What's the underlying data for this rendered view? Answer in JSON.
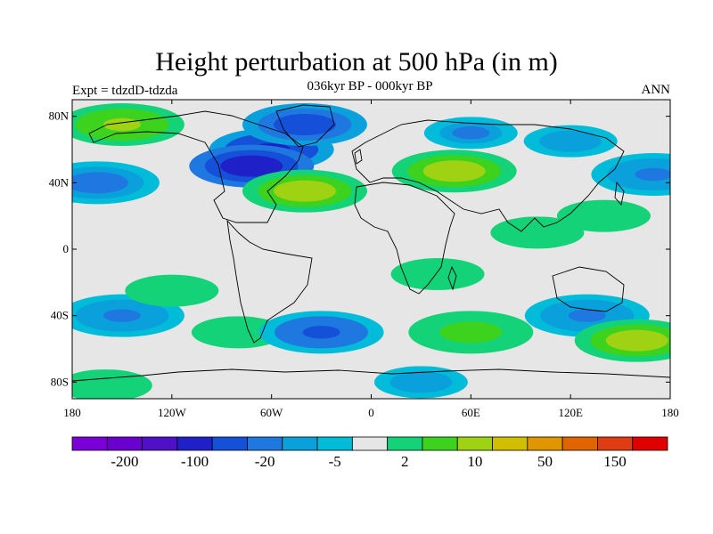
{
  "title": "Height perturbation at 500 hPa (in m)",
  "subtitle": "036kyr BP - 000kyr BP",
  "experiment": "Expt = tdzdD-tdzda",
  "season": "ANN",
  "map": {
    "projection": "equirectangular",
    "lon_range": [
      -180,
      180
    ],
    "lat_range": [
      -90,
      90
    ],
    "lat_ticks": [
      {
        "value": 80,
        "label": "80N"
      },
      {
        "value": 40,
        "label": "40N"
      },
      {
        "value": 0,
        "label": "0"
      },
      {
        "value": -40,
        "label": "40S"
      },
      {
        "value": -80,
        "label": "80S"
      }
    ],
    "lon_ticks": [
      {
        "value": -180,
        "label": "180"
      },
      {
        "value": -120,
        "label": "120W"
      },
      {
        "value": -60,
        "label": "60W"
      },
      {
        "value": 0,
        "label": "0"
      },
      {
        "value": 60,
        "label": "60E"
      },
      {
        "value": 120,
        "label": "120E"
      },
      {
        "value": 180,
        "label": "180"
      }
    ],
    "background_color": "#e6e6e6"
  },
  "colorbar": {
    "colors": [
      "#7b00d8",
      "#6a00d0",
      "#5010c8",
      "#2020c8",
      "#1450d8",
      "#1e78e0",
      "#0aa0dc",
      "#00bcd8",
      "#e6e6e6",
      "#14d278",
      "#3cd21e",
      "#a0d214",
      "#d2be00",
      "#e09600",
      "#e06400",
      "#e03c14",
      "#e00000"
    ],
    "labels": [
      {
        "after_box": 1,
        "text": "-200"
      },
      {
        "after_box": 3,
        "text": "-100"
      },
      {
        "after_box": 5,
        "text": "-20"
      },
      {
        "after_box": 7,
        "text": "-5"
      },
      {
        "after_box": 9,
        "text": "2"
      },
      {
        "after_box": 11,
        "text": "10"
      },
      {
        "after_box": 13,
        "text": "50"
      },
      {
        "after_box": 15,
        "text": "150"
      }
    ]
  },
  "field_anomalies": [
    {
      "lon": -60,
      "lat": 60,
      "value": -60
    },
    {
      "lon": -72,
      "lat": 50,
      "value": -110
    },
    {
      "lon": -40,
      "lat": 75,
      "value": -40
    },
    {
      "lon": -165,
      "lat": 40,
      "value": -20
    },
    {
      "lon": -150,
      "lat": 75,
      "value": 30
    },
    {
      "lon": -40,
      "lat": 35,
      "value": 40
    },
    {
      "lon": 50,
      "lat": 47,
      "value": 40
    },
    {
      "lon": 60,
      "lat": 70,
      "value": -12
    },
    {
      "lon": 120,
      "lat": 65,
      "value": -10
    },
    {
      "lon": 170,
      "lat": 45,
      "value": -15
    },
    {
      "lon": 140,
      "lat": 20,
      "value": 8
    },
    {
      "lon": 100,
      "lat": 10,
      "value": 6
    },
    {
      "lon": -150,
      "lat": -40,
      "value": -15
    },
    {
      "lon": -120,
      "lat": -25,
      "value": 8
    },
    {
      "lon": -80,
      "lat": -50,
      "value": 8
    },
    {
      "lon": -30,
      "lat": -50,
      "value": -30
    },
    {
      "lon": 60,
      "lat": -50,
      "value": 25
    },
    {
      "lon": 40,
      "lat": -15,
      "value": 6
    },
    {
      "lon": 130,
      "lat": -40,
      "value": -15
    },
    {
      "lon": 160,
      "lat": -55,
      "value": 40
    },
    {
      "lon": -160,
      "lat": -82,
      "value": 10
    },
    {
      "lon": 30,
      "lat": -80,
      "value": -8
    }
  ]
}
